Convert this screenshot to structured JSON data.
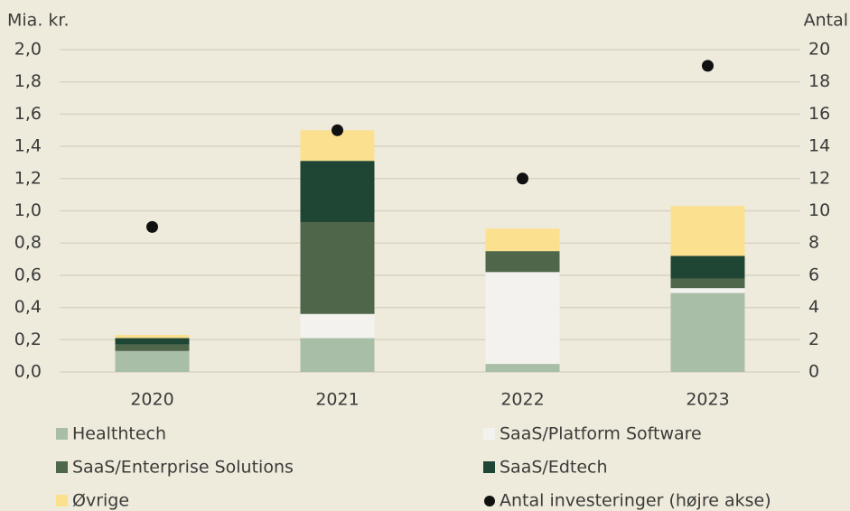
{
  "chart_data": {
    "type": "bar",
    "stacked": true,
    "ylabel": "Mia. kr.",
    "y2label": "Antal",
    "categories": [
      "2020",
      "2021",
      "2022",
      "2023"
    ],
    "series": [
      {
        "name": "Healthtech",
        "color": "#a9bea6",
        "values": [
          0.13,
          0.21,
          0.05,
          0.49
        ]
      },
      {
        "name": "SaaS/Platform Software",
        "color": "#f3f2ee",
        "values": [
          0,
          0.15,
          0.57,
          0.03
        ]
      },
      {
        "name": "SaaS/Enterprise Solutions",
        "color": "#4f664a",
        "values": [
          0.04,
          0.57,
          0.13,
          0.06
        ]
      },
      {
        "name": "SaaS/Edtech",
        "color": "#1f4535",
        "values": [
          0.04,
          0.38,
          0,
          0.14
        ]
      },
      {
        "name": "Øvrige",
        "color": "#fbe08f",
        "values": [
          0.02,
          0.19,
          0.14,
          0.31
        ]
      },
      {
        "name": "Antal investeringer (højre akse)",
        "color": "#111111",
        "type": "scatter",
        "axis": "y2",
        "values": [
          9,
          15,
          12,
          19
        ]
      }
    ],
    "ylim": [
      0,
      2
    ],
    "yticks": [
      {
        "value": 0,
        "label": "0,0"
      },
      {
        "value": 0.2,
        "label": "0,2"
      },
      {
        "value": 0.4,
        "label": "0,4"
      },
      {
        "value": 0.6,
        "label": "0,6"
      },
      {
        "value": 0.8,
        "label": "0,8"
      },
      {
        "value": 1,
        "label": "1,0"
      },
      {
        "value": 1.2,
        "label": "1,2"
      },
      {
        "value": 1.4,
        "label": "1,4"
      },
      {
        "value": 1.6,
        "label": "1,6"
      },
      {
        "value": 1.8,
        "label": "1,8"
      },
      {
        "value": 2,
        "label": "2,0"
      }
    ],
    "y2lim": [
      0,
      20
    ],
    "y2ticks": [
      0,
      2,
      4,
      6,
      8,
      10,
      12,
      14,
      16,
      18,
      20
    ],
    "grid": true
  }
}
